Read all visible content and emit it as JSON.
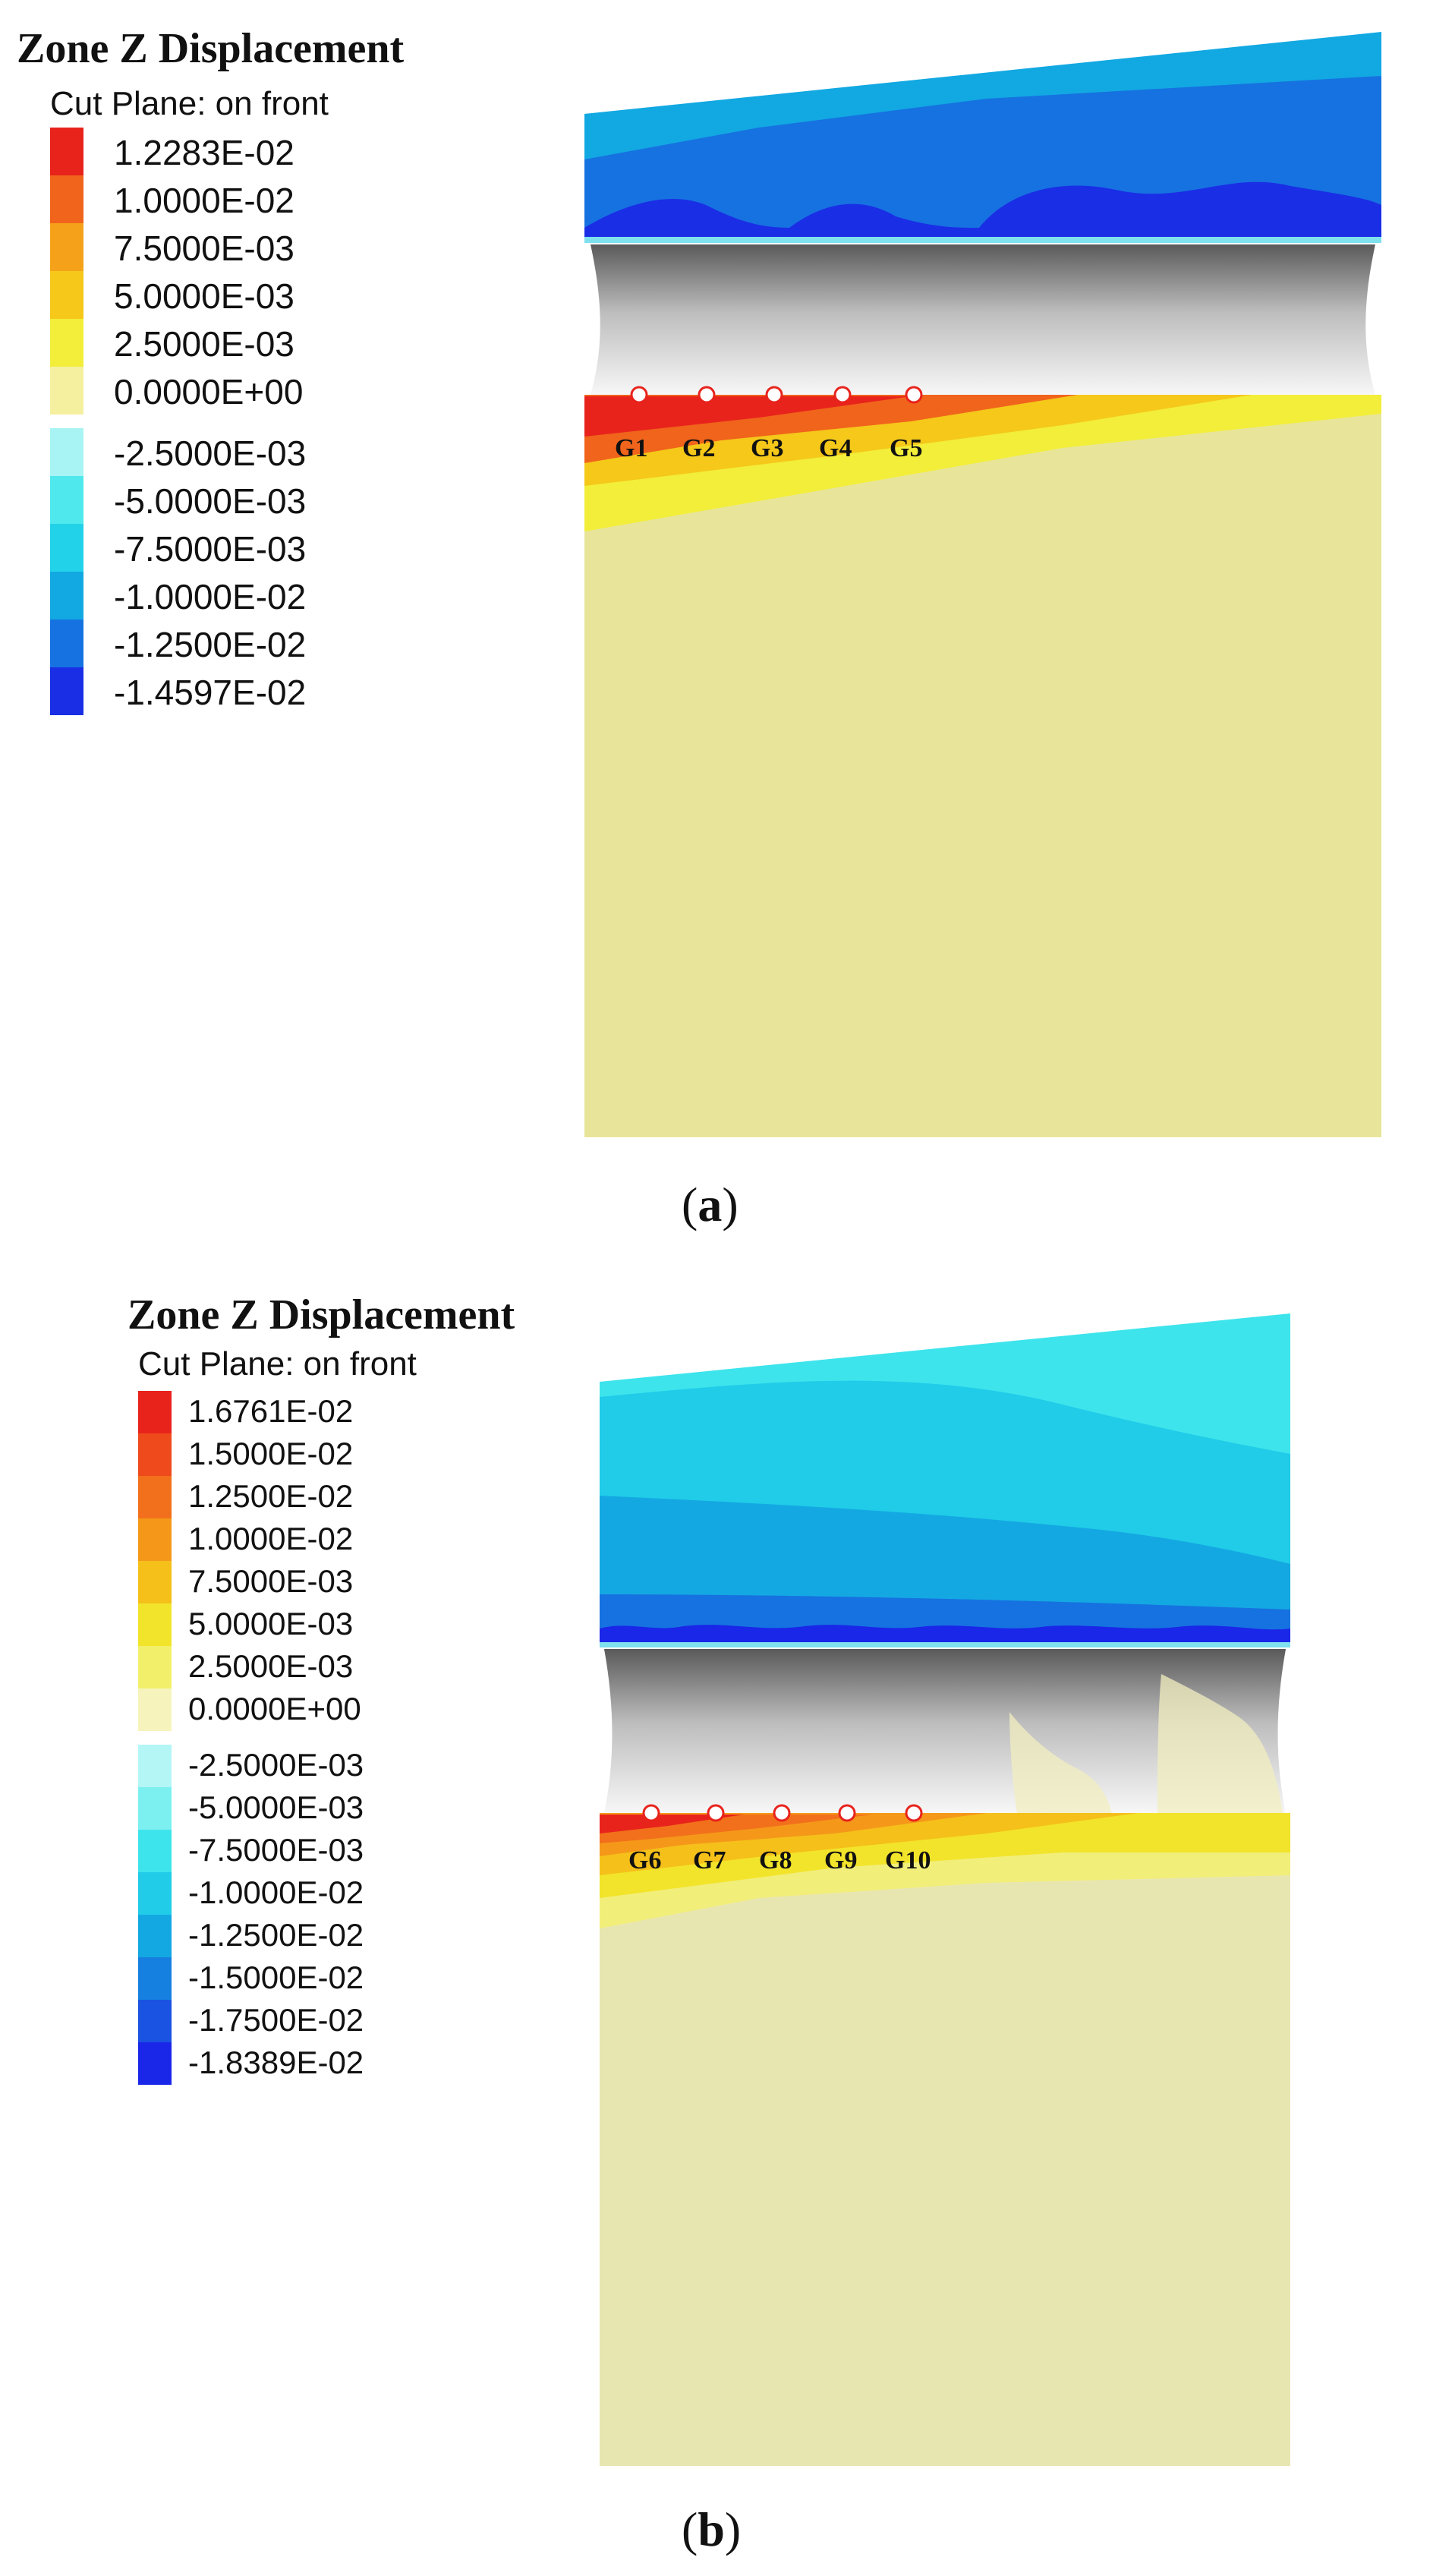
{
  "panel_a": {
    "legend_title": "Zone Z Displacement",
    "legend_subtitle": "Cut Plane: on front",
    "legend_positive": [
      {
        "label": "1.2283E-02",
        "color": "#e8231c"
      },
      {
        "label": "1.0000E-02",
        "color": "#f0641b"
      },
      {
        "label": "7.5000E-03",
        "color": "#f5a21a"
      },
      {
        "label": "5.0000E-03",
        "color": "#f5c81a"
      },
      {
        "label": "2.5000E-03",
        "color": "#f2ee3a"
      },
      {
        "label": "0.0000E+00",
        "color": "#f4f0a0"
      }
    ],
    "legend_negative": [
      {
        "label": "-2.5000E-03",
        "color": "#a8f4f4"
      },
      {
        "label": "-5.0000E-03",
        "color": "#4fe8ec"
      },
      {
        "label": "-7.5000E-03",
        "color": "#22d2e8"
      },
      {
        "label": "-1.0000E-02",
        "color": "#12a8e2"
      },
      {
        "label": "-1.2500E-02",
        "color": "#1672e0"
      },
      {
        "label": "-1.4597E-02",
        "color": "#1a2ee6"
      }
    ],
    "gauges": [
      "G1",
      "G2",
      "G3",
      "G4",
      "G5"
    ],
    "caption_letter": "a"
  },
  "panel_b": {
    "legend_title": "Zone Z Displacement",
    "legend_subtitle": "Cut Plane: on front",
    "legend_positive": [
      {
        "label": "1.6761E-02",
        "color": "#e8231c"
      },
      {
        "label": "1.5000E-02",
        "color": "#ee4a1c"
      },
      {
        "label": "1.2500E-02",
        "color": "#f2701b"
      },
      {
        "label": "1.0000E-02",
        "color": "#f5981a"
      },
      {
        "label": "7.5000E-03",
        "color": "#f5c01a"
      },
      {
        "label": "5.0000E-03",
        "color": "#f2e42a"
      },
      {
        "label": "2.5000E-03",
        "color": "#f2f06a"
      },
      {
        "label": "0.0000E+00",
        "color": "#f6f4bc"
      }
    ],
    "legend_negative": [
      {
        "label": "-2.5000E-03",
        "color": "#b4f6f6"
      },
      {
        "label": "-5.0000E-03",
        "color": "#7cf0f0"
      },
      {
        "label": "-7.5000E-03",
        "color": "#3ee4ec"
      },
      {
        "label": "-1.0000E-02",
        "color": "#20cce8"
      },
      {
        "label": "-1.2500E-02",
        "color": "#14a8e2"
      },
      {
        "label": "-1.5000E-02",
        "color": "#1680e0"
      },
      {
        "label": "-1.7500E-02",
        "color": "#1a52e2"
      },
      {
        "label": "-1.8389E-02",
        "color": "#1a26e8"
      }
    ],
    "gauges": [
      "G6",
      "G7",
      "G8",
      "G9",
      "G10"
    ],
    "caption_letter": "b"
  }
}
